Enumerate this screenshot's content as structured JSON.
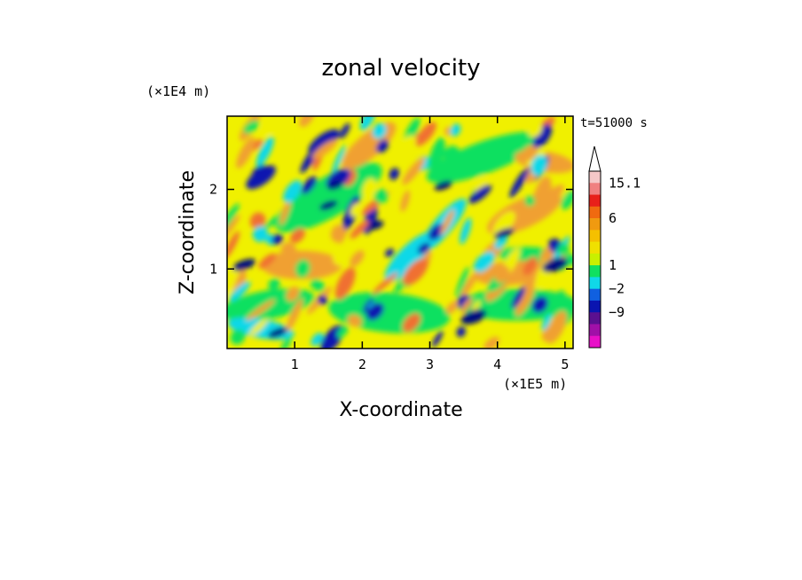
{
  "chart_data": {
    "type": "heatmap",
    "title": "zonal velocity",
    "xlabel": "X-coordinate",
    "ylabel": "Z-coordinate",
    "x_unit": "(×1E5 m)",
    "y_unit": "(×1E4 m)",
    "time_label": "t=51000 s",
    "xlim": [
      0,
      5.12
    ],
    "ylim": [
      0,
      2.92
    ],
    "x_ticks": [
      1,
      2,
      3,
      4,
      5
    ],
    "y_ticks": [
      1,
      2
    ],
    "x_tick_labels": [
      "1",
      "2",
      "3",
      "4",
      "5"
    ],
    "y_tick_labels": [
      "1",
      "2"
    ],
    "colorbar": {
      "tick_labels": [
        "15.1",
        "6",
        "1",
        "−2",
        "−9"
      ],
      "has_overflow_arrow": true,
      "colors_top_to_bottom": [
        "#f5c8c8",
        "#f08080",
        "#e8201a",
        "#f06a10",
        "#f09a10",
        "#f5c000",
        "#f0e000",
        "#c8f000",
        "#10e060",
        "#10d8e8",
        "#1060e0",
        "#0a14b0",
        "#5a1090",
        "#a010a8",
        "#e810c8"
      ]
    },
    "field_colors": {
      "yellow": "#f0f000",
      "orange": "#f0a030",
      "red_orange": "#f07030",
      "green": "#10e060",
      "cyan": "#10d8e8",
      "blue": "#0a14b0",
      "dark_blue": "#000a80"
    }
  }
}
